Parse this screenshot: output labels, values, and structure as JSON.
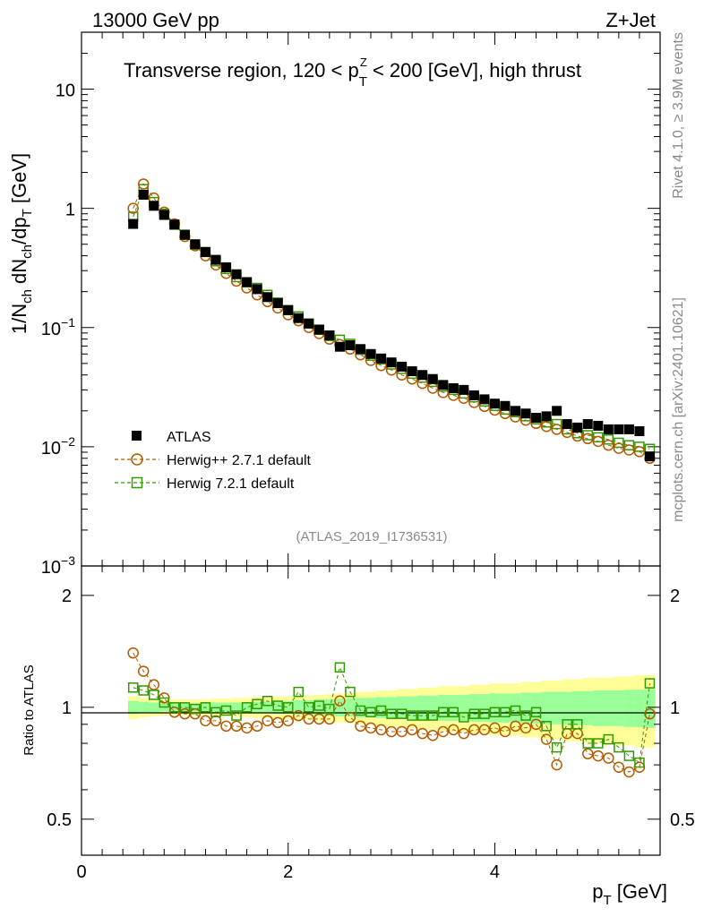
{
  "chart_data": [
    {
      "panel": "main",
      "type": "scatter",
      "title": "Transverse region, 120 < p_T^Z < 200 [GeV], high thrust",
      "title_prefix": "Transverse region, 120 < p",
      "title_sub": "T",
      "title_sup": "Z",
      "title_suffix": " < 200 [GeV], high thrust",
      "header_left": "13000 GeV pp",
      "header_right": "Z+Jet",
      "analysis_id": "(ATLAS_2019_I1736531)",
      "side_label_top": "Rivet 4.1.0, ≥ 3.9M events",
      "side_label_bottom": "mcplots.cern.ch [arXiv:2401.10621]",
      "ylabel": "1/N_ch dN_ch/dp_T [GeV]",
      "yscale": "log",
      "ylim": [
        0.001,
        30
      ],
      "yticks": [
        {
          "value": 10,
          "base": "10",
          "exp": ""
        },
        {
          "value": 1,
          "base": "1",
          "exp": ""
        },
        {
          "value": 0.1,
          "base": "10",
          "exp": "−1"
        },
        {
          "value": 0.01,
          "base": "10",
          "exp": "−2"
        },
        {
          "value": 0.001,
          "base": "10",
          "exp": "−3"
        }
      ],
      "xlim": [
        0,
        5.6
      ],
      "x": [
        0.5,
        0.6,
        0.7,
        0.8,
        0.9,
        1.0,
        1.1,
        1.2,
        1.3,
        1.4,
        1.5,
        1.6,
        1.7,
        1.8,
        1.9,
        2.0,
        2.1,
        2.2,
        2.3,
        2.4,
        2.5,
        2.6,
        2.7,
        2.8,
        2.9,
        3.0,
        3.1,
        3.2,
        3.3,
        3.4,
        3.5,
        3.6,
        3.7,
        3.8,
        3.9,
        4.0,
        4.1,
        4.2,
        4.3,
        4.4,
        4.5,
        4.6,
        4.7,
        4.8,
        4.9,
        5.0,
        5.1,
        5.2,
        5.3,
        5.4,
        5.5
      ],
      "series": [
        {
          "name": "ATLAS",
          "color": "#000000",
          "marker": "filled-square",
          "values": [
            0.74,
            1.3,
            1.05,
            0.88,
            0.73,
            0.6,
            0.5,
            0.43,
            0.37,
            0.32,
            0.28,
            0.24,
            0.21,
            0.18,
            0.16,
            0.14,
            0.12,
            0.108,
            0.096,
            0.086,
            0.069,
            0.071,
            0.066,
            0.06,
            0.055,
            0.051,
            0.047,
            0.043,
            0.04,
            0.037,
            0.033,
            0.031,
            0.03,
            0.027,
            0.025,
            0.023,
            0.022,
            0.02,
            0.019,
            0.0175,
            0.018,
            0.02,
            0.0155,
            0.0145,
            0.0155,
            0.015,
            0.014,
            0.014,
            0.014,
            0.0135,
            0.0083
          ]
        },
        {
          "name": "Herwig++ 2.7.1 default",
          "color": "#b35900",
          "marker": "open-circle",
          "values": [
            1.0,
            1.6,
            1.22,
            0.93,
            0.74,
            0.58,
            0.485,
            0.4,
            0.335,
            0.285,
            0.245,
            0.215,
            0.188,
            0.165,
            0.146,
            0.128,
            0.114,
            0.1,
            0.089,
            0.08,
            0.072,
            0.066,
            0.059,
            0.053,
            0.048,
            0.044,
            0.04,
            0.037,
            0.034,
            0.031,
            0.0285,
            0.027,
            0.0255,
            0.0235,
            0.0218,
            0.0203,
            0.019,
            0.0178,
            0.0167,
            0.0157,
            0.0148,
            0.014,
            0.0132,
            0.0123,
            0.0117,
            0.0111,
            0.0103,
            0.0097,
            0.0094,
            0.0091,
            0.008
          ]
        },
        {
          "name": "Herwig 7.2.1 default",
          "color": "#339900",
          "marker": "open-square",
          "values": [
            0.85,
            1.45,
            1.13,
            0.9,
            0.73,
            0.6,
            0.495,
            0.43,
            0.36,
            0.31,
            0.265,
            0.24,
            0.215,
            0.188,
            0.162,
            0.14,
            0.124,
            0.108,
            0.096,
            0.085,
            0.079,
            0.073,
            0.065,
            0.058,
            0.054,
            0.049,
            0.045,
            0.041,
            0.038,
            0.035,
            0.032,
            0.03,
            0.028,
            0.026,
            0.024,
            0.022,
            0.0205,
            0.0195,
            0.018,
            0.017,
            0.016,
            0.0155,
            0.014,
            0.013,
            0.0125,
            0.012,
            0.0115,
            0.0108,
            0.0103,
            0.01,
            0.0096
          ]
        }
      ]
    },
    {
      "panel": "ratio",
      "type": "scatter",
      "ylabel": "Ratio to ATLAS",
      "xlabel": "p_T [GeV]",
      "xlabel_main": "p",
      "xlabel_sub": "T",
      "xlabel_unit": " [GeV]",
      "ylim": [
        0.4,
        2.4
      ],
      "yticks": [
        "0.5",
        "1",
        "2"
      ],
      "xticks": [
        "0",
        "2",
        "4"
      ],
      "reference": 1,
      "x": [
        0.5,
        0.6,
        0.7,
        0.8,
        0.9,
        1.0,
        1.1,
        1.2,
        1.3,
        1.4,
        1.5,
        1.6,
        1.7,
        1.8,
        1.9,
        2.0,
        2.1,
        2.2,
        2.3,
        2.4,
        2.5,
        2.6,
        2.7,
        2.8,
        2.9,
        3.0,
        3.1,
        3.2,
        3.3,
        3.4,
        3.5,
        3.6,
        3.7,
        3.8,
        3.9,
        4.0,
        4.1,
        4.2,
        4.3,
        4.4,
        4.5,
        4.6,
        4.7,
        4.8,
        4.9,
        5.0,
        5.1,
        5.2,
        5.3,
        5.4,
        5.5
      ],
      "band_inner": [
        0.04,
        0.035,
        0.03,
        0.025,
        0.025,
        0.025,
        0.025,
        0.025,
        0.03,
        0.03,
        0.03,
        0.03,
        0.035,
        0.035,
        0.04,
        0.04,
        0.045,
        0.045,
        0.05,
        0.05,
        0.055,
        0.055,
        0.06,
        0.06,
        0.065,
        0.065,
        0.07,
        0.07,
        0.075,
        0.075,
        0.08,
        0.08,
        0.08,
        0.085,
        0.085,
        0.09,
        0.09,
        0.09,
        0.095,
        0.095,
        0.1,
        0.1,
        0.1,
        0.105,
        0.105,
        0.11,
        0.11,
        0.11,
        0.115,
        0.115,
        0.12
      ],
      "band_outer": [
        0.07,
        0.06,
        0.055,
        0.05,
        0.05,
        0.05,
        0.05,
        0.05,
        0.055,
        0.055,
        0.06,
        0.06,
        0.065,
        0.065,
        0.07,
        0.07,
        0.075,
        0.075,
        0.08,
        0.085,
        0.09,
        0.09,
        0.1,
        0.1,
        0.11,
        0.11,
        0.12,
        0.12,
        0.13,
        0.13,
        0.14,
        0.14,
        0.14,
        0.15,
        0.15,
        0.16,
        0.16,
        0.16,
        0.17,
        0.17,
        0.18,
        0.18,
        0.19,
        0.19,
        0.2,
        0.2,
        0.2,
        0.21,
        0.21,
        0.22,
        0.22
      ],
      "series": [
        {
          "name": "Herwig++ 2.7.1 default",
          "color": "#b35900",
          "marker": "open-circle",
          "values": [
            1.4,
            1.25,
            1.15,
            1.06,
            0.97,
            0.96,
            0.96,
            0.92,
            0.92,
            0.89,
            0.89,
            0.88,
            0.89,
            0.92,
            0.91,
            0.92,
            0.95,
            0.93,
            0.93,
            0.93,
            1.04,
            0.94,
            0.89,
            0.88,
            0.87,
            0.86,
            0.86,
            0.87,
            0.85,
            0.84,
            0.86,
            0.87,
            0.85,
            0.87,
            0.87,
            0.88,
            0.86,
            0.89,
            0.88,
            0.9,
            0.82,
            0.7,
            0.85,
            0.85,
            0.75,
            0.74,
            0.73,
            0.69,
            0.67,
            0.69,
            0.96
          ]
        },
        {
          "name": "Herwig 7.2.1 default",
          "color": "#339900",
          "marker": "open-square",
          "values": [
            1.13,
            1.11,
            1.08,
            1.03,
            1.0,
            1.0,
            0.99,
            1.0,
            0.97,
            0.98,
            0.95,
            1.0,
            1.02,
            1.04,
            1.01,
            1.0,
            1.1,
            1.0,
            1.01,
            0.99,
            1.28,
            1.1,
            0.98,
            0.97,
            0.98,
            0.96,
            0.96,
            0.95,
            0.95,
            0.95,
            0.97,
            0.97,
            0.94,
            0.96,
            0.96,
            0.97,
            0.97,
            0.98,
            0.95,
            0.97,
            0.89,
            0.78,
            0.9,
            0.9,
            0.8,
            0.8,
            0.82,
            0.78,
            0.74,
            0.71,
            1.16
          ]
        }
      ]
    }
  ]
}
